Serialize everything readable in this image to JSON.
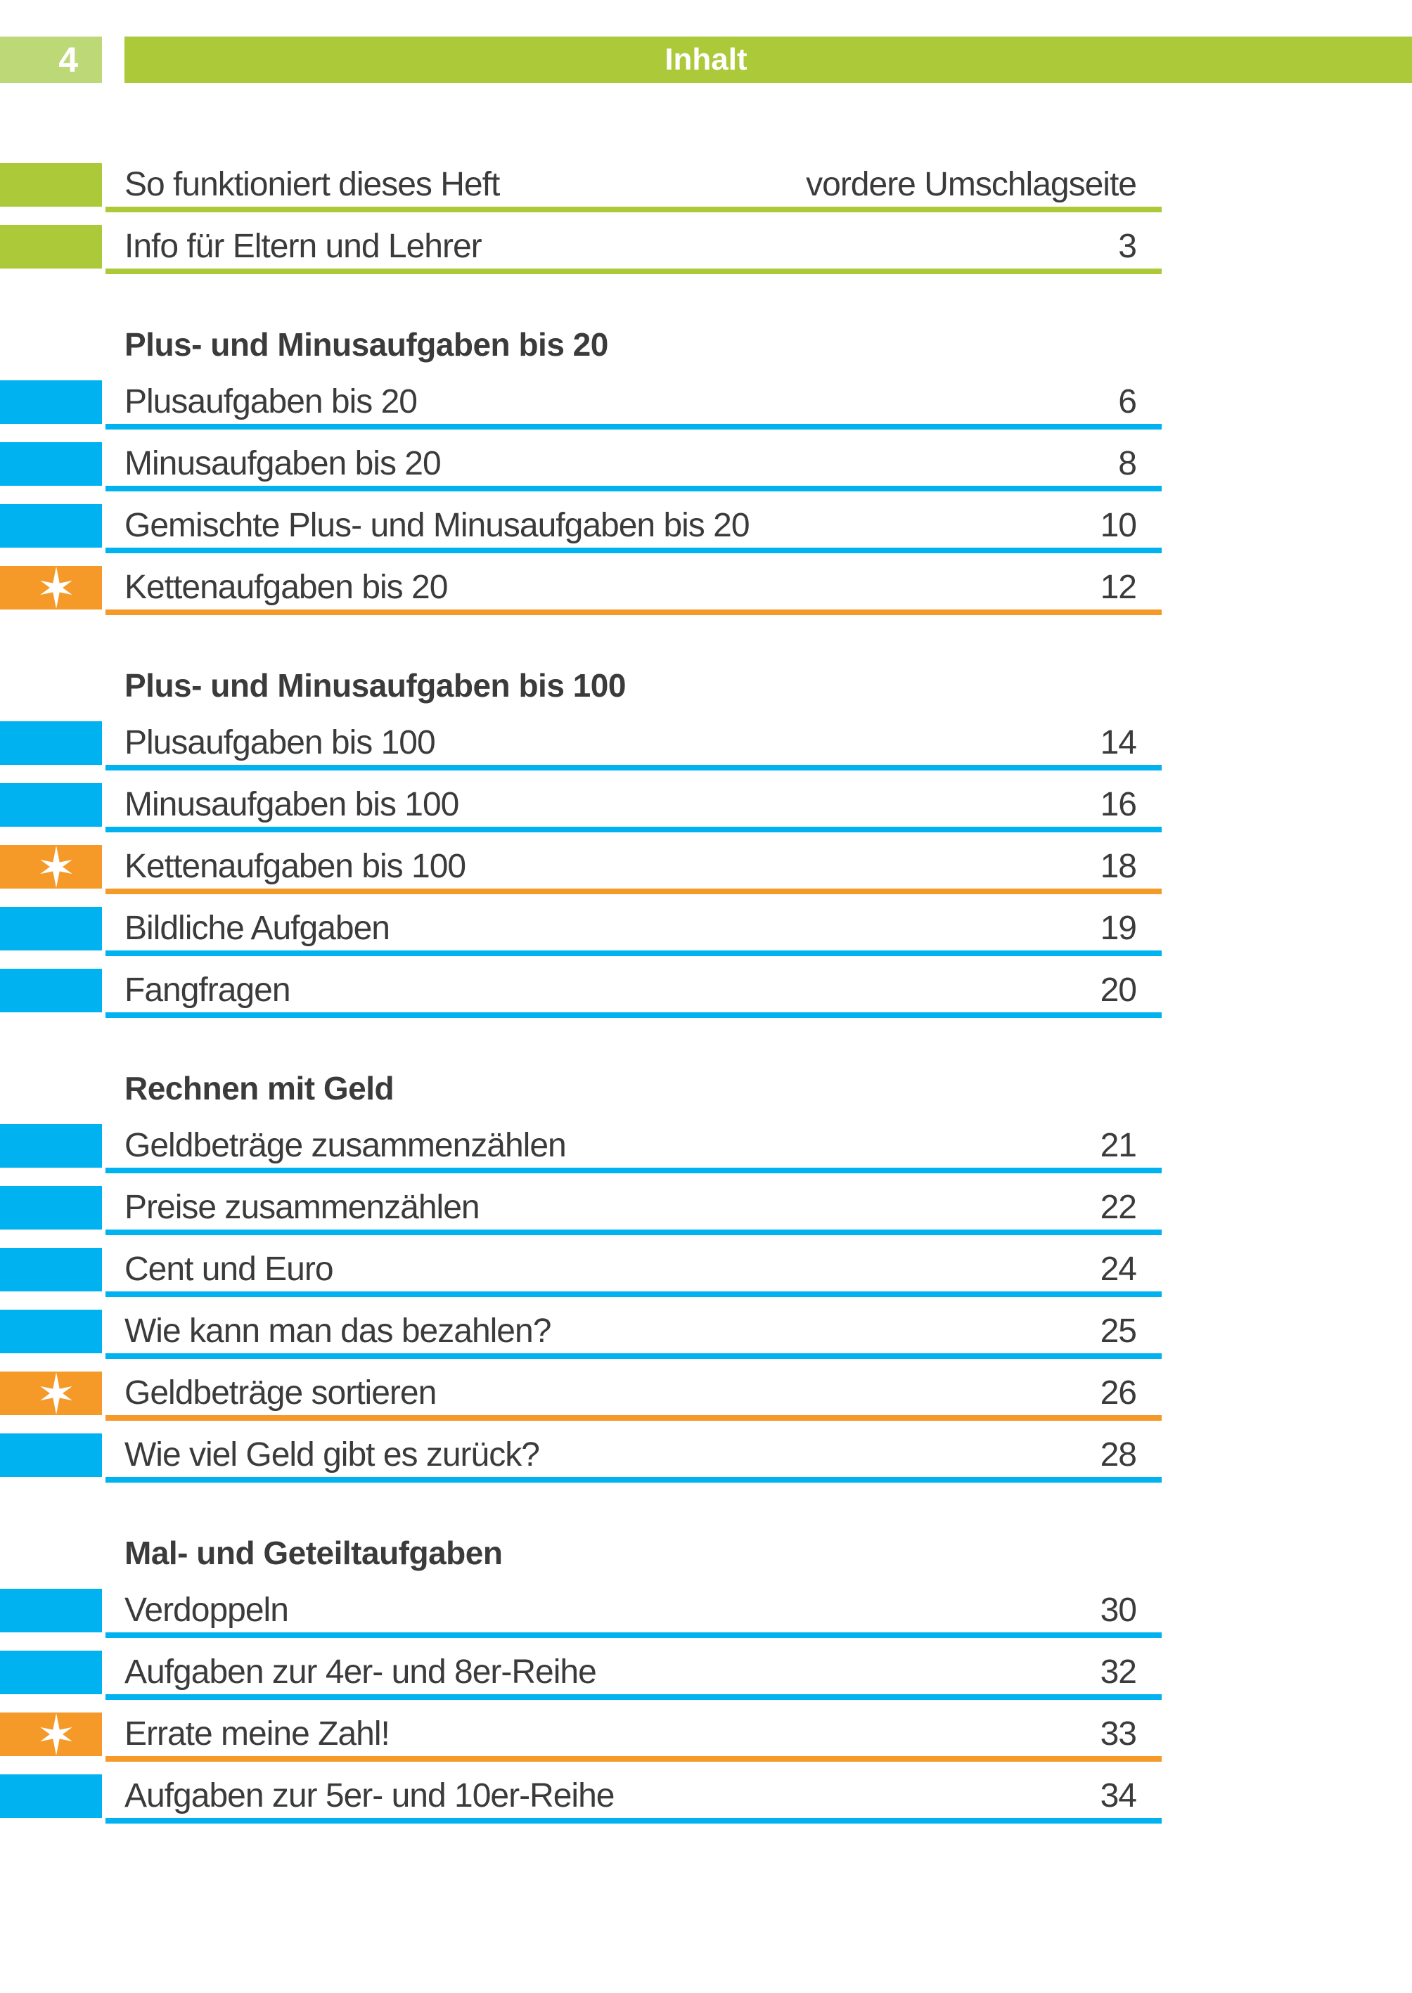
{
  "page": {
    "number": "4",
    "header_title": "Inhalt"
  },
  "colors": {
    "header_green": "#abc938",
    "page_box_green": "#bdd877",
    "row_blue": "#00b2ef",
    "row_orange": "#f59a28",
    "text_gray": "#3b3b3b",
    "white": "#ffffff"
  },
  "icons": {
    "star": "six-pointed-sparkle-star"
  },
  "toc": {
    "intro_rows": [
      {
        "label": "So funktioniert dieses Heft",
        "page": "vordere Umschlagseite",
        "color": "green",
        "starred": false
      },
      {
        "label": "Info für Eltern und Lehrer",
        "page": "3",
        "color": "green",
        "starred": false
      }
    ],
    "sections": [
      {
        "title": "Plus- und Minusaufgaben bis 20",
        "rows": [
          {
            "label": "Plusaufgaben bis 20",
            "page": "6",
            "color": "blue",
            "starred": false
          },
          {
            "label": "Minusaufgaben bis 20",
            "page": "8",
            "color": "blue",
            "starred": false
          },
          {
            "label": "Gemischte Plus- und Minusaufgaben bis 20",
            "page": "10",
            "color": "blue",
            "starred": false
          },
          {
            "label": "Kettenaufgaben bis 20",
            "page": "12",
            "color": "orange",
            "starred": true
          }
        ]
      },
      {
        "title": "Plus- und Minusaufgaben bis 100",
        "rows": [
          {
            "label": "Plusaufgaben bis 100",
            "page": "14",
            "color": "blue",
            "starred": false
          },
          {
            "label": "Minusaufgaben bis 100",
            "page": "16",
            "color": "blue",
            "starred": false
          },
          {
            "label": "Kettenaufgaben bis 100",
            "page": "18",
            "color": "orange",
            "starred": true
          },
          {
            "label": "Bildliche Aufgaben",
            "page": "19",
            "color": "blue",
            "starred": false
          },
          {
            "label": "Fangfragen",
            "page": "20",
            "color": "blue",
            "starred": false
          }
        ]
      },
      {
        "title": "Rechnen mit Geld",
        "rows": [
          {
            "label": "Geldbeträge zusammenzählen",
            "page": "21",
            "color": "blue",
            "starred": false
          },
          {
            "label": "Preise zusammenzählen",
            "page": "22",
            "color": "blue",
            "starred": false
          },
          {
            "label": "Cent und Euro",
            "page": "24",
            "color": "blue",
            "starred": false
          },
          {
            "label": "Wie kann man das bezahlen?",
            "page": "25",
            "color": "blue",
            "starred": false
          },
          {
            "label": "Geldbeträge sortieren",
            "page": "26",
            "color": "orange",
            "starred": true
          },
          {
            "label": "Wie viel Geld gibt es zurück?",
            "page": "28",
            "color": "blue",
            "starred": false
          }
        ]
      },
      {
        "title": "Mal- und Geteiltaufgaben",
        "rows": [
          {
            "label": "Verdoppeln",
            "page": "30",
            "color": "blue",
            "starred": false
          },
          {
            "label": "Aufgaben zur 4er- und 8er-Reihe",
            "page": "32",
            "color": "blue",
            "starred": false
          },
          {
            "label": "Errate meine Zahl!",
            "page": "33",
            "color": "orange",
            "starred": true
          },
          {
            "label": "Aufgaben zur 5er- und 10er-Reihe",
            "page": "34",
            "color": "blue",
            "starred": false
          }
        ]
      }
    ]
  }
}
